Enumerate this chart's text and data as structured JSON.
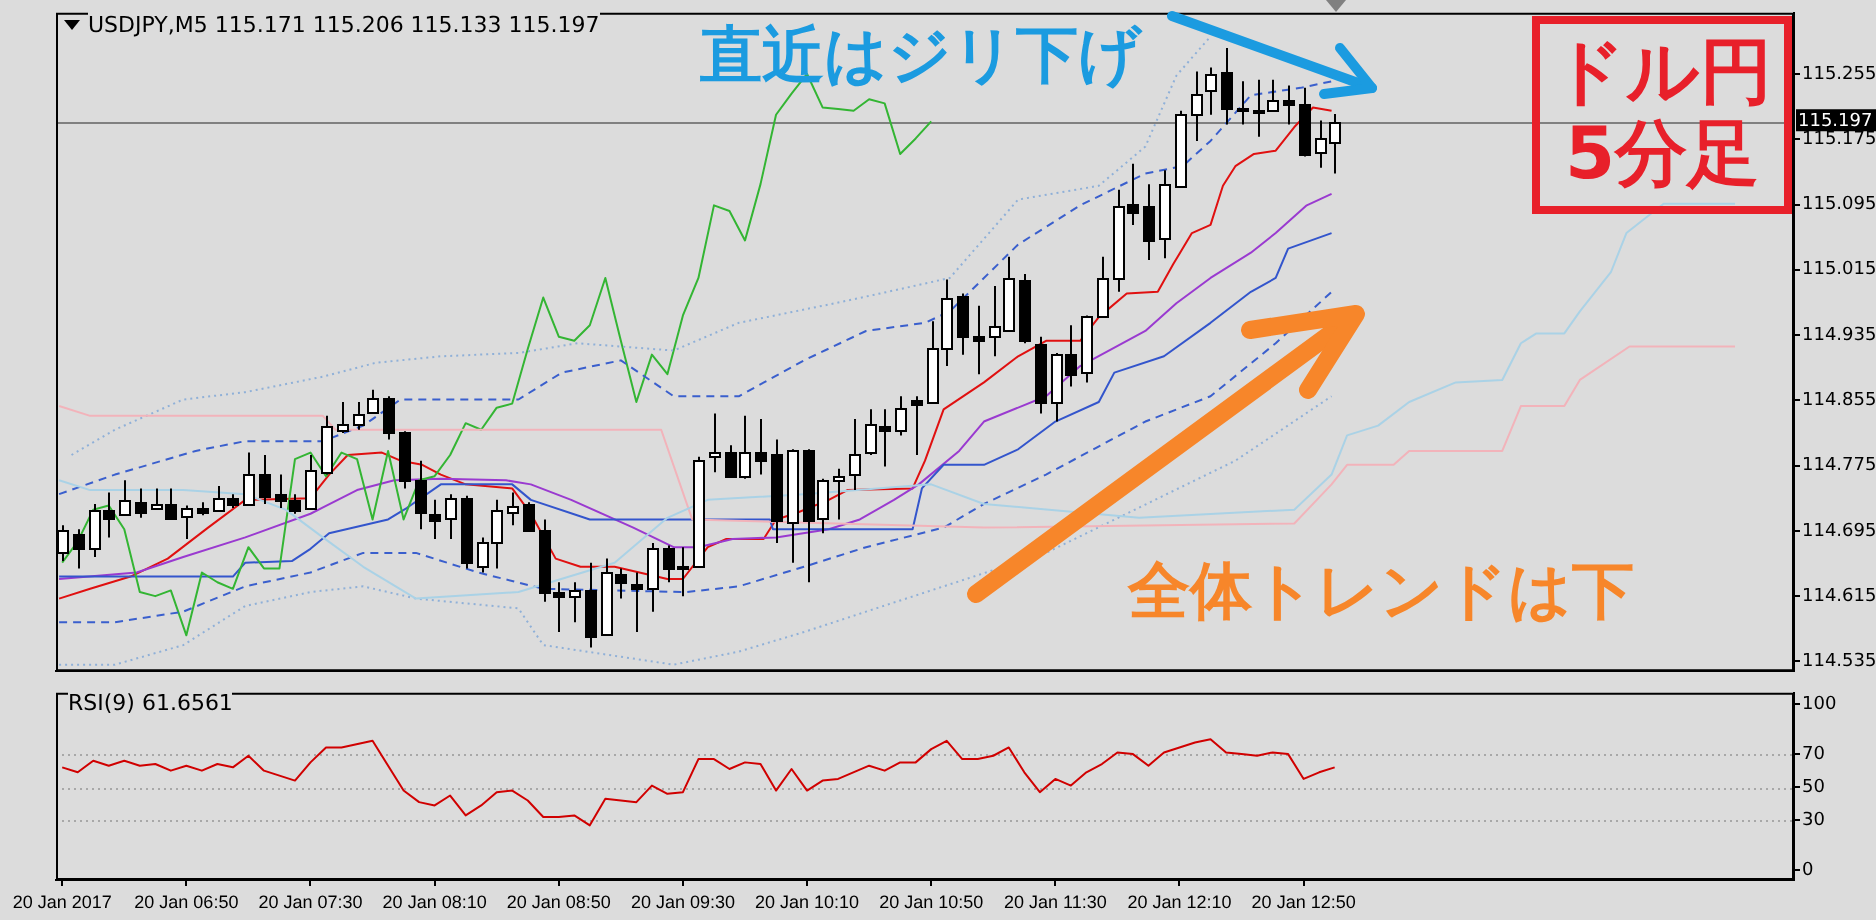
{
  "chart_data": [
    {
      "type": "candlestick",
      "title": "USDJPY,M5  115.171 115.206 115.133 115.197",
      "tick_labels": "y",
      "marker": "none",
      "x": [
        "2017-01-20T06:10",
        "2017-01-20T06:15",
        "2017-01-20T06:20",
        "2017-01-20T06:25",
        "2017-01-20T06:30",
        "2017-01-20T06:35",
        "2017-01-20T06:40",
        "2017-01-20T06:45",
        "2017-01-20T06:50",
        "2017-01-20T06:55",
        "2017-01-20T07:00",
        "2017-01-20T07:05",
        "2017-01-20T07:10",
        "2017-01-20T07:15",
        "2017-01-20T07:20",
        "2017-01-20T07:25",
        "2017-01-20T07:30",
        "2017-01-20T07:35",
        "2017-01-20T07:40",
        "2017-01-20T07:45",
        "2017-01-20T07:50",
        "2017-01-20T07:55",
        "2017-01-20T08:00",
        "2017-01-20T08:05",
        "2017-01-20T08:10",
        "2017-01-20T08:15",
        "2017-01-20T08:20",
        "2017-01-20T08:25",
        "2017-01-20T08:30",
        "2017-01-20T08:35",
        "2017-01-20T08:40",
        "2017-01-20T08:45",
        "2017-01-20T08:50",
        "2017-01-20T08:55",
        "2017-01-20T09:00",
        "2017-01-20T09:05",
        "2017-01-20T09:10",
        "2017-01-20T09:15",
        "2017-01-20T09:20",
        "2017-01-20T09:25",
        "2017-01-20T09:30",
        "2017-01-20T09:35",
        "2017-01-20T09:40",
        "2017-01-20T09:45",
        "2017-01-20T09:50",
        "2017-01-20T09:55",
        "2017-01-20T10:00",
        "2017-01-20T10:05",
        "2017-01-20T10:10",
        "2017-01-20T10:15",
        "2017-01-20T10:20",
        "2017-01-20T10:25",
        "2017-01-20T10:30",
        "2017-01-20T10:35",
        "2017-01-20T10:40",
        "2017-01-20T10:45",
        "2017-01-20T10:50",
        "2017-01-20T10:55",
        "2017-01-20T11:00",
        "2017-01-20T11:05",
        "2017-01-20T11:10",
        "2017-01-20T11:15",
        "2017-01-20T11:20",
        "2017-01-20T11:25",
        "2017-01-20T11:30",
        "2017-01-20T11:35",
        "2017-01-20T11:40",
        "2017-01-20T11:45",
        "2017-01-20T11:50",
        "2017-01-20T11:55",
        "2017-01-20T12:00",
        "2017-01-20T12:05",
        "2017-01-20T12:10",
        "2017-01-20T12:15",
        "2017-01-20T12:20",
        "2017-01-20T12:25",
        "2017-01-20T12:30",
        "2017-01-20T12:35",
        "2017-01-20T12:40",
        "2017-01-20T12:45",
        "2017-01-20T12:50",
        "2017-01-20T12:55",
        "2017-01-20T13:00"
      ],
      "ohlc": [
        [
          114.67,
          114.702,
          114.658,
          114.697
        ],
        [
          114.692,
          114.697,
          114.649,
          114.675
        ],
        [
          114.675,
          114.728,
          114.663,
          114.721
        ],
        [
          114.721,
          114.742,
          114.687,
          114.711
        ],
        [
          114.716,
          114.757,
          114.714,
          114.733
        ],
        [
          114.73,
          114.747,
          114.711,
          114.718
        ],
        [
          114.723,
          114.747,
          114.721,
          114.728
        ],
        [
          114.728,
          114.747,
          114.711,
          114.711
        ],
        [
          114.714,
          114.726,
          114.685,
          114.723
        ],
        [
          114.723,
          114.73,
          114.714,
          114.718
        ],
        [
          114.721,
          114.75,
          114.718,
          114.735
        ],
        [
          114.735,
          114.74,
          114.723,
          114.728
        ],
        [
          114.728,
          114.791,
          114.726,
          114.764
        ],
        [
          114.764,
          114.788,
          114.728,
          114.738
        ],
        [
          114.74,
          114.764,
          114.723,
          114.733
        ],
        [
          114.733,
          114.74,
          114.716,
          114.721
        ],
        [
          114.723,
          114.788,
          114.721,
          114.769
        ],
        [
          114.767,
          114.836,
          114.764,
          114.824
        ],
        [
          114.819,
          114.853,
          114.815,
          114.827
        ],
        [
          114.827,
          114.853,
          114.819,
          114.839
        ],
        [
          114.841,
          114.868,
          114.839,
          114.858
        ],
        [
          114.858,
          114.86,
          114.807,
          114.815
        ],
        [
          114.815,
          114.817,
          114.747,
          114.757
        ],
        [
          114.757,
          114.781,
          114.697,
          114.718
        ],
        [
          114.716,
          114.733,
          114.685,
          114.709
        ],
        [
          114.711,
          114.74,
          114.685,
          114.735
        ],
        [
          114.735,
          114.738,
          114.649,
          114.656
        ],
        [
          114.653,
          114.687,
          114.644,
          114.682
        ],
        [
          114.682,
          114.733,
          114.649,
          114.721
        ],
        [
          114.718,
          114.742,
          114.702,
          114.726
        ],
        [
          114.728,
          114.73,
          114.694,
          114.697
        ],
        [
          114.697,
          114.709,
          114.608,
          114.62
        ],
        [
          114.62,
          114.632,
          114.571,
          114.615
        ],
        [
          114.615,
          114.632,
          114.583,
          114.622
        ],
        [
          114.622,
          114.656,
          114.552,
          114.567
        ],
        [
          114.569,
          114.661,
          114.567,
          114.644
        ],
        [
          114.641,
          114.649,
          114.612,
          114.632
        ],
        [
          114.629,
          114.644,
          114.571,
          114.624
        ],
        [
          114.624,
          114.68,
          114.596,
          114.675
        ],
        [
          114.675,
          114.677,
          114.632,
          114.649
        ],
        [
          114.651,
          114.675,
          114.615,
          114.649
        ],
        [
          114.653,
          114.786,
          114.651,
          114.783
        ],
        [
          114.786,
          114.839,
          114.767,
          114.791
        ],
        [
          114.791,
          114.8,
          114.762,
          114.762
        ],
        [
          114.762,
          114.836,
          114.759,
          114.791
        ],
        [
          114.791,
          114.832,
          114.764,
          114.783
        ],
        [
          114.788,
          114.807,
          114.68,
          114.709
        ],
        [
          114.706,
          114.795,
          114.656,
          114.793
        ],
        [
          114.793,
          114.795,
          114.632,
          114.709
        ],
        [
          114.711,
          114.759,
          114.692,
          114.757
        ],
        [
          114.757,
          114.771,
          114.709,
          114.762
        ],
        [
          114.764,
          114.832,
          114.745,
          114.788
        ],
        [
          114.791,
          114.844,
          114.788,
          114.827
        ],
        [
          114.824,
          114.844,
          114.774,
          114.819
        ],
        [
          114.819,
          114.86,
          114.812,
          114.846
        ],
        [
          114.856,
          114.86,
          114.788,
          114.851
        ],
        [
          114.853,
          114.952,
          114.851,
          114.918
        ],
        [
          114.918,
          115.003,
          114.897,
          114.981
        ],
        [
          114.983,
          114.986,
          114.911,
          114.933
        ],
        [
          114.933,
          114.971,
          114.887,
          114.928
        ],
        [
          114.935,
          114.995,
          114.909,
          114.947
        ],
        [
          114.942,
          115.031,
          114.94,
          115.005
        ],
        [
          115.003,
          115.01,
          114.925,
          114.928
        ],
        [
          114.925,
          114.933,
          114.839,
          114.853
        ],
        [
          114.853,
          114.913,
          114.829,
          114.911
        ],
        [
          114.911,
          114.947,
          114.872,
          114.887
        ],
        [
          114.889,
          114.959,
          114.877,
          114.959
        ],
        [
          114.959,
          115.031,
          114.957,
          115.005
        ],
        [
          115.005,
          115.113,
          114.988,
          115.094
        ],
        [
          115.096,
          115.145,
          115.07,
          115.087
        ],
        [
          115.092,
          115.12,
          115.027,
          115.051
        ],
        [
          115.055,
          115.137,
          115.029,
          115.12
        ],
        [
          115.118,
          115.21,
          115.116,
          115.205
        ],
        [
          115.205,
          115.258,
          115.173,
          115.231
        ],
        [
          115.236,
          115.263,
          115.205,
          115.255
        ],
        [
          115.258,
          115.287,
          115.193,
          115.214
        ],
        [
          115.214,
          115.246,
          115.193,
          115.212
        ],
        [
          115.212,
          115.248,
          115.178,
          115.21
        ],
        [
          115.212,
          115.248,
          115.21,
          115.224
        ],
        [
          115.224,
          115.241,
          115.193,
          115.219
        ],
        [
          115.219,
          115.238,
          115.154,
          115.157
        ],
        [
          115.159,
          115.198,
          115.14,
          115.176
        ],
        [
          115.171,
          115.206,
          115.133,
          115.197
        ]
      ],
      "series": [
        {
          "type": "line",
          "color": "#aad2e6",
          "x": [
            "2017-01-20T06:09",
            "2017-01-20T06:19",
            "2017-01-20T06:49",
            "2017-01-20T07:09",
            "2017-01-20T07:22",
            "2017-01-20T07:34",
            "2017-01-20T07:47",
            "2017-01-20T08:04",
            "2017-01-20T08:37",
            "2017-01-20T09:08",
            "2017-01-20T09:25",
            "2017-01-20T09:38",
            "2017-01-20T10:09",
            "2017-01-20T10:50",
            "2017-01-20T11:07",
            "2017-01-20T11:57",
            "2017-01-20T12:47",
            "2017-01-20T12:59",
            "2017-01-20T13:04",
            "2017-01-20T13:14",
            "2017-01-20T13:24",
            "2017-01-20T13:39",
            "2017-01-20T13:54",
            "2017-01-20T14:00",
            "2017-01-20T14:05",
            "2017-01-20T14:14",
            "2017-01-20T14:19",
            "2017-01-20T14:29",
            "2017-01-20T14:34",
            "2017-01-20T14:46",
            "2017-01-20T15:09"
          ],
          "values": [
            114.757,
            114.745,
            114.745,
            114.74,
            114.721,
            114.687,
            114.651,
            114.612,
            114.62,
            114.656,
            114.711,
            114.733,
            114.74,
            114.752,
            114.728,
            114.711,
            114.721,
            114.764,
            114.812,
            114.824,
            114.853,
            114.877,
            114.88,
            114.925,
            114.937,
            114.937,
            114.964,
            115.012,
            115.06,
            115.096,
            115.096
          ]
        },
        {
          "type": "line",
          "color": "#f2b3ba",
          "x": [
            "2017-01-20T06:09",
            "2017-01-20T06:19",
            "2017-01-20T07:34",
            "2017-01-20T07:38",
            "2017-01-20T09:23",
            "2017-01-20T09:33",
            "2017-01-20T11:07",
            "2017-01-20T12:47",
            "2017-01-20T12:59",
            "2017-01-20T13:04",
            "2017-01-20T13:19",
            "2017-01-20T13:24",
            "2017-01-20T13:54",
            "2017-01-20T14:00",
            "2017-01-20T14:14",
            "2017-01-20T14:19",
            "2017-01-20T14:35",
            "2017-01-20T15:09"
          ],
          "values": [
            114.848,
            114.836,
            114.836,
            114.819,
            114.819,
            114.709,
            114.699,
            114.704,
            114.752,
            114.776,
            114.776,
            114.793,
            114.793,
            114.848,
            114.848,
            114.88,
            114.921,
            114.921
          ]
        },
        {
          "type": "line",
          "color": "#8fb0d8",
          "line_style": "dotted",
          "x": [
            "2017-01-20T06:13",
            "2017-01-20T06:27",
            "2017-01-20T06:49",
            "2017-01-20T07:09",
            "2017-01-20T07:34",
            "2017-01-20T07:51",
            "2017-01-20T08:12",
            "2017-01-20T08:37",
            "2017-01-20T08:56",
            "2017-01-20T09:27",
            "2017-01-20T09:48",
            "2017-01-20T10:19",
            "2017-01-20T10:36",
            "2017-01-20T10:56",
            "2017-01-20T11:07",
            "2017-01-20T11:18",
            "2017-01-20T11:44",
            "2017-01-20T11:59",
            "2017-01-20T12:09",
            "2017-01-20T12:20"
          ],
          "values": [
            114.788,
            114.819,
            114.856,
            114.865,
            114.884,
            114.901,
            114.909,
            114.913,
            114.925,
            114.916,
            114.95,
            114.974,
            114.988,
            115.005,
            115.053,
            115.101,
            115.118,
            115.166,
            115.253,
            115.301
          ]
        },
        {
          "type": "line",
          "color": "#8fb0d8",
          "line_style": "dotted",
          "x": [
            "2017-01-20T06:09",
            "2017-01-20T06:27",
            "2017-01-20T06:49",
            "2017-01-20T07:09",
            "2017-01-20T07:30",
            "2017-01-20T07:47",
            "2017-01-20T08:04",
            "2017-01-20T08:37",
            "2017-01-20T08:45",
            "2017-01-20T09:27",
            "2017-01-20T09:48",
            "2017-01-20T10:09",
            "2017-01-20T10:29",
            "2017-01-20T10:54",
            "2017-01-20T11:27",
            "2017-01-20T12:28",
            "2017-01-20T12:59"
          ],
          "values": [
            114.531,
            114.531,
            114.555,
            114.603,
            114.62,
            114.627,
            114.612,
            114.6,
            114.555,
            114.531,
            114.547,
            114.571,
            114.596,
            114.627,
            114.668,
            114.781,
            114.86
          ]
        },
        {
          "type": "line",
          "color": "#3a5fcd",
          "line_style": "dashed",
          "x": [
            "2017-01-20T06:09",
            "2017-01-20T06:27",
            "2017-01-20T06:53",
            "2017-01-20T07:09",
            "2017-01-20T07:34",
            "2017-01-20T07:47",
            "2017-01-20T07:59",
            "2017-01-20T08:37",
            "2017-01-20T08:51",
            "2017-01-20T09:10",
            "2017-01-20T09:27",
            "2017-01-20T09:48",
            "2017-01-20T10:09",
            "2017-01-20T10:29",
            "2017-01-20T10:48",
            "2017-01-20T10:56",
            "2017-01-20T11:18",
            "2017-01-20T11:38",
            "2017-01-20T11:59",
            "2017-01-20T12:11",
            "2017-01-20T12:20",
            "2017-01-20T12:33",
            "2017-01-20T12:49",
            "2017-01-20T12:59"
          ],
          "values": [
            114.74,
            114.764,
            114.793,
            114.805,
            114.805,
            114.824,
            114.856,
            114.856,
            114.889,
            114.904,
            114.86,
            114.86,
            114.904,
            114.94,
            114.95,
            114.964,
            115.046,
            115.094,
            115.133,
            115.142,
            115.173,
            115.229,
            115.238,
            115.246
          ]
        },
        {
          "type": "line",
          "color": "#3a5fcd",
          "line_style": "dashed",
          "x": [
            "2017-01-20T06:09",
            "2017-01-20T06:27",
            "2017-01-20T06:49",
            "2017-01-20T07:09",
            "2017-01-20T07:30",
            "2017-01-20T07:47",
            "2017-01-20T08:04",
            "2017-01-20T08:24",
            "2017-01-20T08:45",
            "2017-01-20T09:31",
            "2017-01-20T09:48",
            "2017-01-20T10:09",
            "2017-01-20T10:29",
            "2017-01-20T10:54",
            "2017-01-20T11:07",
            "2017-01-20T11:27",
            "2017-01-20T11:59",
            "2017-01-20T12:20",
            "2017-01-20T12:41",
            "2017-01-20T12:59"
          ],
          "values": [
            114.583,
            114.583,
            114.596,
            114.627,
            114.644,
            114.668,
            114.668,
            114.644,
            114.624,
            114.62,
            114.627,
            114.651,
            114.675,
            114.699,
            114.728,
            114.764,
            114.829,
            114.86,
            114.925,
            114.988
          ]
        },
        {
          "type": "line",
          "color": "#33b533",
          "x": [
            "2017-01-20T06:10",
            "2017-01-20T06:15",
            "2017-01-20T06:20",
            "2017-01-20T06:25",
            "2017-01-20T06:30",
            "2017-01-20T06:35",
            "2017-01-20T06:40",
            "2017-01-20T06:45",
            "2017-01-20T06:50",
            "2017-01-20T06:55",
            "2017-01-20T07:00",
            "2017-01-20T07:05",
            "2017-01-20T07:10",
            "2017-01-20T07:15",
            "2017-01-20T07:20",
            "2017-01-20T07:25",
            "2017-01-20T07:30",
            "2017-01-20T07:35",
            "2017-01-20T07:40",
            "2017-01-20T07:45",
            "2017-01-20T07:50",
            "2017-01-20T07:55",
            "2017-01-20T08:00",
            "2017-01-20T08:05",
            "2017-01-20T08:10",
            "2017-01-20T08:15",
            "2017-01-20T08:20",
            "2017-01-20T08:25",
            "2017-01-20T08:30",
            "2017-01-20T08:35",
            "2017-01-20T08:40",
            "2017-01-20T08:45",
            "2017-01-20T08:50",
            "2017-01-20T08:55",
            "2017-01-20T09:00",
            "2017-01-20T09:05",
            "2017-01-20T09:10",
            "2017-01-20T09:15",
            "2017-01-20T09:20",
            "2017-01-20T09:25",
            "2017-01-20T09:30",
            "2017-01-20T09:35",
            "2017-01-20T09:40",
            "2017-01-20T09:45",
            "2017-01-20T09:50",
            "2017-01-20T09:55",
            "2017-01-20T10:00",
            "2017-01-20T10:05",
            "2017-01-20T10:10",
            "2017-01-20T10:15",
            "2017-01-20T10:20",
            "2017-01-20T10:25",
            "2017-01-20T10:30",
            "2017-01-20T10:35",
            "2017-01-20T10:40",
            "2017-01-20T10:45",
            "2017-01-20T10:50"
          ],
          "values": [
            114.656,
            114.682,
            114.721,
            114.726,
            114.697,
            114.62,
            114.615,
            114.622,
            114.567,
            114.644,
            114.632,
            114.624,
            114.675,
            114.649,
            114.649,
            114.783,
            114.791,
            114.762,
            114.791,
            114.783,
            114.709,
            114.793,
            114.709,
            114.757,
            114.762,
            114.788,
            114.827,
            114.819,
            114.846,
            114.851,
            114.918,
            114.981,
            114.933,
            114.928,
            114.947,
            115.005,
            114.928,
            114.853,
            114.911,
            114.887,
            114.959,
            115.005,
            115.094,
            115.087,
            115.051,
            115.12,
            115.205,
            115.231,
            115.255,
            115.214,
            115.212,
            115.21,
            115.224,
            115.219,
            115.157,
            115.176,
            115.197
          ]
        },
        {
          "type": "line",
          "color": "#3355cc",
          "x": [
            "2017-01-20T06:09",
            "2017-01-20T07:05",
            "2017-01-20T07:09",
            "2017-01-20T07:24",
            "2017-01-20T07:30",
            "2017-01-20T07:36",
            "2017-01-20T07:55",
            "2017-01-20T08:01",
            "2017-01-20T08:12",
            "2017-01-20T08:35",
            "2017-01-20T08:41",
            "2017-01-20T09:00",
            "2017-01-20T09:25",
            "2017-01-20T09:58",
            "2017-01-20T09:59",
            "2017-01-20T10:44",
            "2017-01-20T10:47",
            "2017-01-20T10:54",
            "2017-01-20T11:07",
            "2017-01-20T11:18",
            "2017-01-20T11:30",
            "2017-01-20T11:44",
            "2017-01-20T11:49",
            "2017-01-20T12:05",
            "2017-01-20T12:20",
            "2017-01-20T12:33",
            "2017-01-20T12:41",
            "2017-01-20T12:45",
            "2017-01-20T12:59"
          ],
          "values": [
            114.639,
            114.639,
            114.656,
            114.658,
            114.673,
            114.692,
            114.709,
            114.723,
            114.752,
            114.752,
            114.733,
            114.709,
            114.709,
            114.709,
            114.697,
            114.697,
            114.747,
            114.776,
            114.776,
            114.795,
            114.829,
            114.853,
            114.889,
            114.909,
            114.95,
            114.988,
            115.005,
            115.041,
            115.06
          ]
        },
        {
          "type": "line",
          "color": "#9a3ad0",
          "x": [
            "2017-01-20T06:09",
            "2017-01-20T06:34",
            "2017-01-20T06:49",
            "2017-01-20T07:09",
            "2017-01-20T07:30",
            "2017-01-20T07:45",
            "2017-01-20T07:57",
            "2017-01-20T08:12",
            "2017-01-20T08:33",
            "2017-01-20T08:41",
            "2017-01-20T08:54",
            "2017-01-20T09:14",
            "2017-01-20T09:27",
            "2017-01-20T09:35",
            "2017-01-20T09:46",
            "2017-01-20T10:00",
            "2017-01-20T10:17",
            "2017-01-20T10:27",
            "2017-01-20T10:38",
            "2017-01-20T10:46",
            "2017-01-20T10:59",
            "2017-01-20T11:07",
            "2017-01-20T11:27",
            "2017-01-20T11:38",
            "2017-01-20T11:59",
            "2017-01-20T12:09",
            "2017-01-20T12:20",
            "2017-01-20T12:33",
            "2017-01-20T12:41",
            "2017-01-20T12:51",
            "2017-01-20T12:59"
          ],
          "values": [
            114.636,
            114.644,
            114.663,
            114.687,
            114.716,
            114.745,
            114.757,
            114.759,
            114.757,
            114.752,
            114.733,
            114.699,
            114.675,
            114.675,
            114.685,
            114.687,
            114.697,
            114.709,
            114.733,
            114.752,
            114.793,
            114.829,
            114.86,
            114.897,
            114.94,
            114.974,
            115.005,
            115.036,
            115.06,
            115.094,
            115.108
          ]
        },
        {
          "type": "line",
          "color": "#e01010",
          "x": [
            "2017-01-20T06:09",
            "2017-01-20T06:19",
            "2017-01-20T06:32",
            "2017-01-20T06:44",
            "2017-01-20T06:57",
            "2017-01-20T07:09",
            "2017-01-20T07:30",
            "2017-01-20T07:36",
            "2017-01-20T07:42",
            "2017-01-20T07:53",
            "2017-01-20T07:59",
            "2017-01-20T08:06",
            "2017-01-20T08:12",
            "2017-01-20T08:20",
            "2017-01-20T08:35",
            "2017-01-20T08:41",
            "2017-01-20T08:49",
            "2017-01-20T08:57",
            "2017-01-20T09:08",
            "2017-01-20T09:25",
            "2017-01-20T09:30",
            "2017-01-20T09:38",
            "2017-01-20T09:44",
            "2017-01-20T09:56",
            "2017-01-20T10:00",
            "2017-01-20T10:06",
            "2017-01-20T10:17",
            "2017-01-20T10:23",
            "2017-01-20T10:44",
            "2017-01-20T10:48",
            "2017-01-20T10:54",
            "2017-01-20T11:07",
            "2017-01-20T11:18",
            "2017-01-20T11:27",
            "2017-01-20T11:38",
            "2017-01-20T11:44",
            "2017-01-20T11:53",
            "2017-01-20T12:03",
            "2017-01-20T12:08",
            "2017-01-20T12:14",
            "2017-01-20T12:20",
            "2017-01-20T12:24",
            "2017-01-20T12:28",
            "2017-01-20T12:34",
            "2017-01-20T12:41",
            "2017-01-20T12:47",
            "2017-01-20T12:53",
            "2017-01-20T12:59"
          ],
          "values": [
            114.612,
            114.624,
            114.639,
            114.661,
            114.699,
            114.733,
            114.735,
            114.764,
            114.788,
            114.791,
            114.781,
            114.776,
            114.764,
            114.752,
            114.747,
            114.716,
            114.661,
            114.651,
            114.651,
            114.636,
            114.636,
            114.675,
            114.685,
            114.685,
            114.709,
            114.716,
            114.733,
            114.745,
            114.747,
            114.781,
            114.844,
            114.877,
            114.909,
            114.928,
            114.928,
            114.957,
            114.986,
            114.988,
            115.022,
            115.06,
            115.07,
            115.118,
            115.142,
            115.157,
            115.161,
            115.19,
            115.214,
            115.21
          ]
        }
      ],
      "xlim": [
        "2017-01-20T06:08",
        "2017-01-20T15:28"
      ],
      "ylim": [
        114.523,
        115.33
      ],
      "yticks": [
        114.535,
        114.615,
        114.695,
        114.775,
        114.855,
        114.935,
        115.015,
        115.095,
        115.175,
        115.255
      ],
      "ref_lines": [
        {
          "axis": "y",
          "value": 115.197,
          "label": "115.197",
          "color": "#808080"
        }
      ],
      "annotations": [
        "直近はジリ下げ",
        "全体トレンドは下",
        "ドル円\n5分足"
      ]
    },
    {
      "type": "line",
      "title": "RSI(9) 61.6561",
      "color": "#d00000",
      "marker": "none",
      "x": [
        "2017-01-20T06:10",
        "2017-01-20T06:15",
        "2017-01-20T06:20",
        "2017-01-20T06:25",
        "2017-01-20T06:30",
        "2017-01-20T06:35",
        "2017-01-20T06:40",
        "2017-01-20T06:45",
        "2017-01-20T06:50",
        "2017-01-20T06:55",
        "2017-01-20T07:00",
        "2017-01-20T07:05",
        "2017-01-20T07:10",
        "2017-01-20T07:15",
        "2017-01-20T07:20",
        "2017-01-20T07:25",
        "2017-01-20T07:30",
        "2017-01-20T07:35",
        "2017-01-20T07:40",
        "2017-01-20T07:50",
        "2017-01-20T08:00",
        "2017-01-20T08:05",
        "2017-01-20T08:10",
        "2017-01-20T08:15",
        "2017-01-20T08:20",
        "2017-01-20T08:25",
        "2017-01-20T08:30",
        "2017-01-20T08:35",
        "2017-01-20T08:40",
        "2017-01-20T08:45",
        "2017-01-20T08:50",
        "2017-01-20T08:55",
        "2017-01-20T09:00",
        "2017-01-20T09:05",
        "2017-01-20T09:15",
        "2017-01-20T09:20",
        "2017-01-20T09:25",
        "2017-01-20T09:30",
        "2017-01-20T09:35",
        "2017-01-20T09:40",
        "2017-01-20T09:45",
        "2017-01-20T09:50",
        "2017-01-20T09:55",
        "2017-01-20T10:00",
        "2017-01-20T10:05",
        "2017-01-20T10:10",
        "2017-01-20T10:15",
        "2017-01-20T10:20",
        "2017-01-20T10:30",
        "2017-01-20T10:35",
        "2017-01-20T10:40",
        "2017-01-20T10:45",
        "2017-01-20T10:50",
        "2017-01-20T10:55",
        "2017-01-20T11:00",
        "2017-01-20T11:05",
        "2017-01-20T11:10",
        "2017-01-20T11:15",
        "2017-01-20T11:20",
        "2017-01-20T11:25",
        "2017-01-20T11:30",
        "2017-01-20T11:35",
        "2017-01-20T11:40",
        "2017-01-20T11:45",
        "2017-01-20T11:50",
        "2017-01-20T11:55",
        "2017-01-20T12:00",
        "2017-01-20T12:05",
        "2017-01-20T12:15",
        "2017-01-20T12:20",
        "2017-01-20T12:25",
        "2017-01-20T12:30",
        "2017-01-20T12:35",
        "2017-01-20T12:40",
        "2017-01-20T12:45",
        "2017-01-20T12:50",
        "2017-01-20T12:55",
        "2017-01-20T13:00"
      ],
      "values": [
        62,
        59,
        66,
        63,
        66,
        63,
        64,
        60,
        63,
        60,
        64,
        62,
        69,
        60,
        57,
        54,
        65,
        74,
        74,
        78,
        48,
        41,
        39,
        45,
        33,
        39,
        47,
        48,
        42,
        32,
        32,
        33,
        27,
        43,
        41,
        51,
        46,
        47,
        67,
        67,
        61,
        65,
        64,
        48,
        61,
        48,
        54,
        55,
        63,
        60,
        65,
        65,
        73,
        78,
        67,
        67,
        69,
        74,
        59,
        47,
        55,
        51,
        59,
        64,
        71,
        70,
        63,
        71,
        77,
        79,
        71,
        70,
        69,
        71,
        70,
        55,
        59,
        62
      ],
      "xlim": [
        "2017-01-20T06:08",
        "2017-01-20T15:28"
      ],
      "ylim": [
        -6,
        107
      ],
      "yticks": [
        0,
        30,
        50,
        70,
        100
      ],
      "xticks": [
        {
          "value": "2017-01-20T06:10",
          "label": "20 Jan 2017"
        },
        {
          "value": "2017-01-20T06:50",
          "label": "20 Jan 06:50"
        },
        {
          "value": "2017-01-20T07:30",
          "label": "20 Jan 07:30"
        },
        {
          "value": "2017-01-20T08:10",
          "label": "20 Jan 08:10"
        },
        {
          "value": "2017-01-20T08:50",
          "label": "20 Jan 08:50"
        },
        {
          "value": "2017-01-20T09:30",
          "label": "20 Jan 09:30"
        },
        {
          "value": "2017-01-20T10:10",
          "label": "20 Jan 10:10"
        },
        {
          "value": "2017-01-20T10:50",
          "label": "20 Jan 10:50"
        },
        {
          "value": "2017-01-20T11:30",
          "label": "20 Jan 11:30"
        },
        {
          "value": "2017-01-20T12:10",
          "label": "20 Jan 12:10"
        },
        {
          "value": "2017-01-20T12:50",
          "label": "20 Jan 12:50"
        }
      ],
      "ref_lines": [
        {
          "axis": "y",
          "value": 70,
          "color": "#a8a8a8",
          "line_style": "dotted"
        },
        {
          "axis": "y",
          "value": 50,
          "color": "#a8a8a8",
          "line_style": "dotted"
        },
        {
          "axis": "y",
          "value": 30,
          "color": "#a8a8a8",
          "line_style": "dotted"
        }
      ]
    }
  ]
}
